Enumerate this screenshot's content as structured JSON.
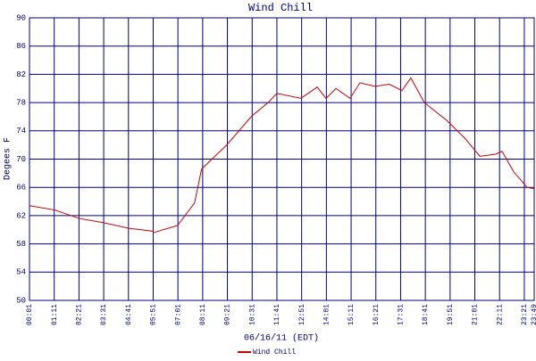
{
  "chart_data": {
    "type": "line",
    "title": "Wind Chill",
    "x_label": "06/16/11 (EDT)",
    "y_label": "Degees F",
    "x": [
      1,
      72,
      142,
      211,
      282,
      350,
      352,
      420,
      468,
      488,
      559,
      630,
      676,
      701,
      769,
      815,
      840,
      868,
      908,
      936,
      979,
      1019,
      1055,
      1080,
      1118,
      1181,
      1232,
      1275,
      1320,
      1338,
      1371,
      1409,
      1429
    ],
    "series": [
      {
        "name": "Wind Chill",
        "color": "#cc0000",
        "values": [
          63.4,
          62.8,
          61.6,
          61.0,
          60.2,
          59.8,
          59.6,
          60.6,
          63.8,
          68.6,
          72.0,
          76.1,
          78.0,
          79.3,
          78.6,
          80.2,
          78.6,
          80.0,
          78.6,
          80.8,
          80.3,
          80.6,
          79.7,
          81.5,
          78.0,
          75.5,
          73.0,
          70.4,
          70.7,
          71.1,
          68.2,
          66.0,
          65.8
        ]
      }
    ],
    "xlim": [
      1,
      1429
    ],
    "xticks": [
      {
        "value": 1,
        "label": "00:01"
      },
      {
        "value": 71,
        "label": "01:11"
      },
      {
        "value": 141,
        "label": "02:21"
      },
      {
        "value": 211,
        "label": "03:31"
      },
      {
        "value": 281,
        "label": "04:41"
      },
      {
        "value": 351,
        "label": "05:51"
      },
      {
        "value": 421,
        "label": "07:01"
      },
      {
        "value": 491,
        "label": "08:11"
      },
      {
        "value": 561,
        "label": "09:21"
      },
      {
        "value": 631,
        "label": "10:31"
      },
      {
        "value": 701,
        "label": "11:41"
      },
      {
        "value": 771,
        "label": "12:51"
      },
      {
        "value": 841,
        "label": "14:01"
      },
      {
        "value": 911,
        "label": "15:11"
      },
      {
        "value": 981,
        "label": "16:21"
      },
      {
        "value": 1051,
        "label": "17:31"
      },
      {
        "value": 1121,
        "label": "18:41"
      },
      {
        "value": 1191,
        "label": "19:51"
      },
      {
        "value": 1261,
        "label": "21:01"
      },
      {
        "value": 1331,
        "label": "22:11"
      },
      {
        "value": 1401,
        "label": "23:21"
      },
      {
        "value": 1429,
        "label": "23:49"
      }
    ],
    "ylim": [
      50,
      90
    ],
    "yticks": [
      50,
      54,
      58,
      62,
      66,
      70,
      74,
      78,
      82,
      86,
      90
    ],
    "grid": true
  }
}
